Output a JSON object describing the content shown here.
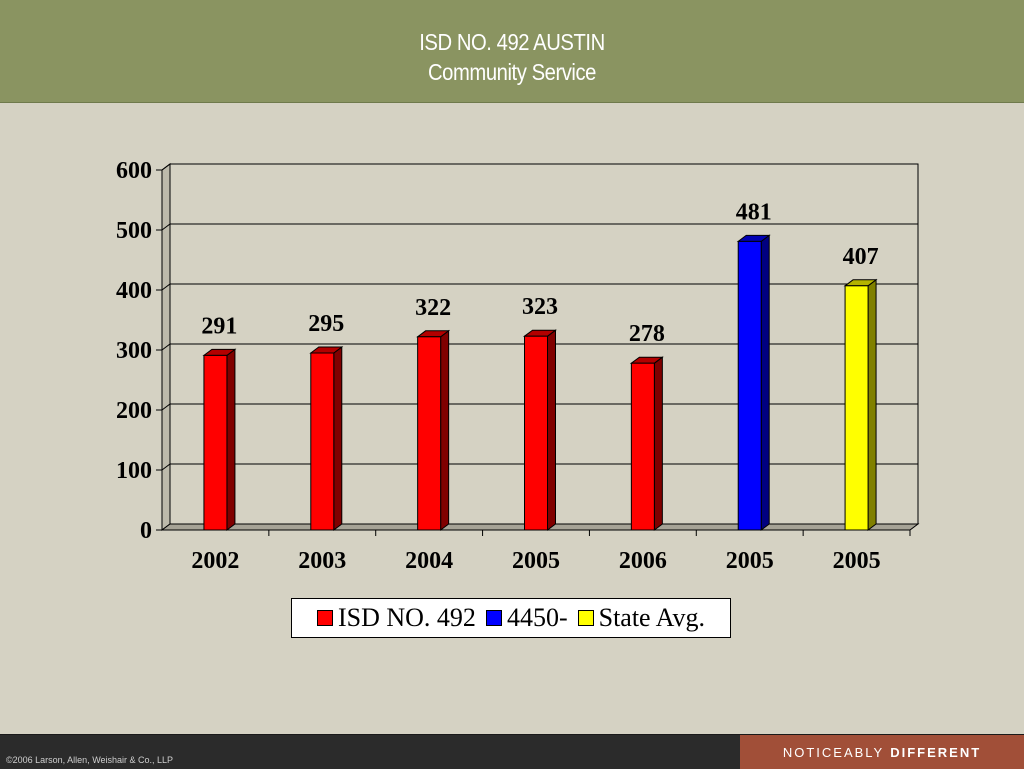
{
  "header": {
    "title": "ISD NO. 492 AUSTIN",
    "subtitle": "Community Service",
    "background": "#8a9461"
  },
  "footer": {
    "copyright": "©2006 Larson, Allen, Weishair & Co., LLP",
    "tagline_normal": "NOTICEABLY",
    "tagline_bold": "DIFFERENT",
    "tagline_background": "#a14f38"
  },
  "chart_data": {
    "type": "bar",
    "title": "",
    "xlabel": "",
    "ylabel": "",
    "categories": [
      "2002",
      "2003",
      "2004",
      "2005",
      "2006",
      "2005",
      "2005"
    ],
    "series": [
      {
        "name": "ISD NO. 492",
        "color": "#ff0000",
        "values": [
          291,
          295,
          322,
          323,
          278,
          null,
          null
        ]
      },
      {
        "name": "4450-",
        "color": "#0000ff",
        "values": [
          null,
          null,
          null,
          null,
          null,
          481,
          null
        ]
      },
      {
        "name": "State Avg.",
        "color": "#ffff00",
        "values": [
          null,
          null,
          null,
          null,
          null,
          null,
          407
        ]
      }
    ],
    "ylim": [
      0,
      600
    ],
    "yticks": [
      "0",
      "100",
      "200",
      "300",
      "400",
      "500",
      "600"
    ],
    "grid": true,
    "legend_position": "bottom",
    "data_labels": true
  }
}
